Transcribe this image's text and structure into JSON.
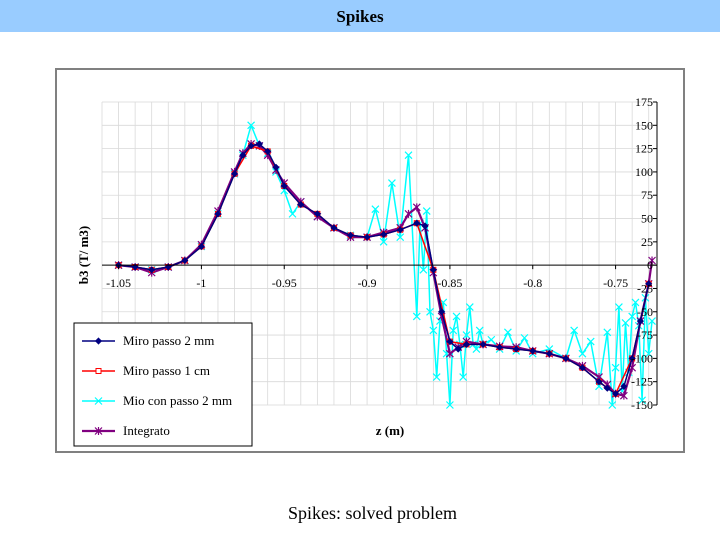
{
  "page": {
    "title": "Spikes",
    "caption": "Spikes: solved problem"
  },
  "colors": {
    "title_bar": "#99ccff",
    "miro2mm": "#000080",
    "miro1cm": "#ff0000",
    "mio2mm": "#00ffff",
    "integrato": "#800080"
  },
  "chart_data": {
    "type": "line",
    "xlabel": "z (m)",
    "ylabel": "b3 (T/ m3)",
    "xlim": [
      -1.06,
      -0.725
    ],
    "ylim": [
      -150,
      175
    ],
    "xticks": [
      -1.05,
      -1.0,
      -0.95,
      -0.9,
      -0.85,
      -0.8,
      -0.75
    ],
    "xtick_labels": [
      "-1.05",
      "-1",
      "-0.95",
      "-0.9",
      "-0.85",
      "-0.8",
      "-0.75"
    ],
    "yticks": [
      175,
      150,
      125,
      100,
      75,
      50,
      25,
      0,
      -25,
      -50,
      -75,
      -100,
      -125,
      -150
    ],
    "ytick_labels": [
      "175",
      "150",
      "125",
      "100",
      "75",
      "50",
      "25",
      "0",
      "-25",
      "-50",
      "-75",
      "-100",
      "-125",
      "-150"
    ],
    "legend": [
      "Miro passo 2 mm",
      "Miro passo 1 cm",
      "Mio con passo 2 mm",
      "Integrato"
    ],
    "series": [
      {
        "name": "Miro passo 2 mm",
        "color": "#000080",
        "marker": "diamond",
        "x": [
          -1.05,
          -1.04,
          -1.03,
          -1.02,
          -1.01,
          -1.0,
          -0.99,
          -0.98,
          -0.975,
          -0.97,
          -0.965,
          -0.96,
          -0.955,
          -0.95,
          -0.94,
          -0.93,
          -0.92,
          -0.91,
          -0.9,
          -0.89,
          -0.88,
          -0.87,
          -0.865,
          -0.86,
          -0.855,
          -0.85,
          -0.845,
          -0.84,
          -0.83,
          -0.82,
          -0.81,
          -0.8,
          -0.79,
          -0.78,
          -0.77,
          -0.76,
          -0.755,
          -0.75,
          -0.745,
          -0.74,
          -0.735,
          -0.73
        ],
        "y": [
          0,
          -2,
          -5,
          -2,
          5,
          20,
          55,
          98,
          118,
          128,
          130,
          122,
          105,
          85,
          65,
          55,
          40,
          32,
          30,
          33,
          38,
          45,
          42,
          -5,
          -50,
          -82,
          -90,
          -85,
          -85,
          -88,
          -90,
          -92,
          -95,
          -100,
          -110,
          -125,
          -132,
          -138,
          -130,
          -100,
          -60,
          -20
        ]
      },
      {
        "name": "Miro passo 1 cm",
        "color": "#ff0000",
        "marker": "square",
        "x": [
          -1.05,
          -1.04,
          -1.03,
          -1.02,
          -1.01,
          -1.0,
          -0.99,
          -0.98,
          -0.97,
          -0.96,
          -0.95,
          -0.94,
          -0.93,
          -0.92,
          -0.91,
          -0.9,
          -0.89,
          -0.88,
          -0.87,
          -0.86,
          -0.85,
          -0.84,
          -0.83,
          -0.82,
          -0.81,
          -0.8,
          -0.79,
          -0.78,
          -0.77,
          -0.76,
          -0.75,
          -0.74,
          -0.73
        ],
        "y": [
          0,
          -2,
          -5,
          -2,
          5,
          20,
          55,
          98,
          128,
          122,
          85,
          65,
          55,
          40,
          32,
          30,
          33,
          38,
          45,
          -5,
          -82,
          -85,
          -85,
          -88,
          -90,
          -92,
          -95,
          -100,
          -110,
          -125,
          -138,
          -100,
          -20
        ]
      },
      {
        "name": "Mio con passo 2 mm",
        "color": "#00ffff",
        "marker": "x",
        "x": [
          -1.05,
          -1.04,
          -1.03,
          -1.02,
          -1.01,
          -1.0,
          -0.99,
          -0.98,
          -0.975,
          -0.97,
          -0.965,
          -0.96,
          -0.955,
          -0.95,
          -0.945,
          -0.94,
          -0.93,
          -0.92,
          -0.91,
          -0.9,
          -0.895,
          -0.89,
          -0.885,
          -0.88,
          -0.875,
          -0.87,
          -0.868,
          -0.866,
          -0.864,
          -0.862,
          -0.86,
          -0.858,
          -0.856,
          -0.854,
          -0.852,
          -0.85,
          -0.848,
          -0.846,
          -0.844,
          -0.842,
          -0.84,
          -0.838,
          -0.836,
          -0.834,
          -0.832,
          -0.83,
          -0.825,
          -0.82,
          -0.815,
          -0.81,
          -0.805,
          -0.8,
          -0.79,
          -0.78,
          -0.775,
          -0.77,
          -0.765,
          -0.76,
          -0.755,
          -0.752,
          -0.75,
          -0.748,
          -0.746,
          -0.744,
          -0.742,
          -0.74,
          -0.738,
          -0.736,
          -0.734,
          -0.732,
          -0.73,
          -0.728
        ],
        "y": [
          0,
          -2,
          -5,
          -2,
          5,
          20,
          55,
          98,
          118,
          150,
          128,
          120,
          100,
          80,
          55,
          68,
          52,
          40,
          32,
          30,
          60,
          25,
          88,
          30,
          118,
          -55,
          45,
          -5,
          58,
          -50,
          -70,
          -120,
          -60,
          -40,
          -95,
          -150,
          -70,
          -55,
          -85,
          -120,
          -75,
          -45,
          -85,
          -90,
          -70,
          -85,
          -80,
          -90,
          -72,
          -92,
          -78,
          -95,
          -90,
          -100,
          -70,
          -95,
          -82,
          -130,
          -72,
          -150,
          -110,
          -45,
          -135,
          -62,
          -115,
          -55,
          -40,
          -65,
          -145,
          -35,
          -95,
          -60
        ]
      },
      {
        "name": "Integrato",
        "color": "#800080",
        "marker": "star",
        "x": [
          -1.05,
          -1.04,
          -1.03,
          -1.02,
          -1.01,
          -1.0,
          -0.99,
          -0.98,
          -0.975,
          -0.97,
          -0.965,
          -0.96,
          -0.955,
          -0.95,
          -0.94,
          -0.93,
          -0.92,
          -0.91,
          -0.9,
          -0.89,
          -0.88,
          -0.875,
          -0.87,
          -0.865,
          -0.86,
          -0.855,
          -0.85,
          -0.845,
          -0.84,
          -0.83,
          -0.82,
          -0.81,
          -0.8,
          -0.79,
          -0.78,
          -0.77,
          -0.76,
          -0.755,
          -0.75,
          -0.745,
          -0.74,
          -0.735,
          -0.73,
          -0.728
        ],
        "y": [
          0,
          -2,
          -8,
          -2,
          5,
          22,
          58,
          100,
          120,
          130,
          128,
          118,
          102,
          88,
          68,
          52,
          40,
          30,
          30,
          35,
          40,
          55,
          62,
          40,
          -8,
          -55,
          -95,
          -88,
          -82,
          -85,
          -87,
          -88,
          -92,
          -95,
          -100,
          -108,
          -120,
          -128,
          -138,
          -140,
          -110,
          -60,
          -20,
          5
        ]
      }
    ]
  }
}
